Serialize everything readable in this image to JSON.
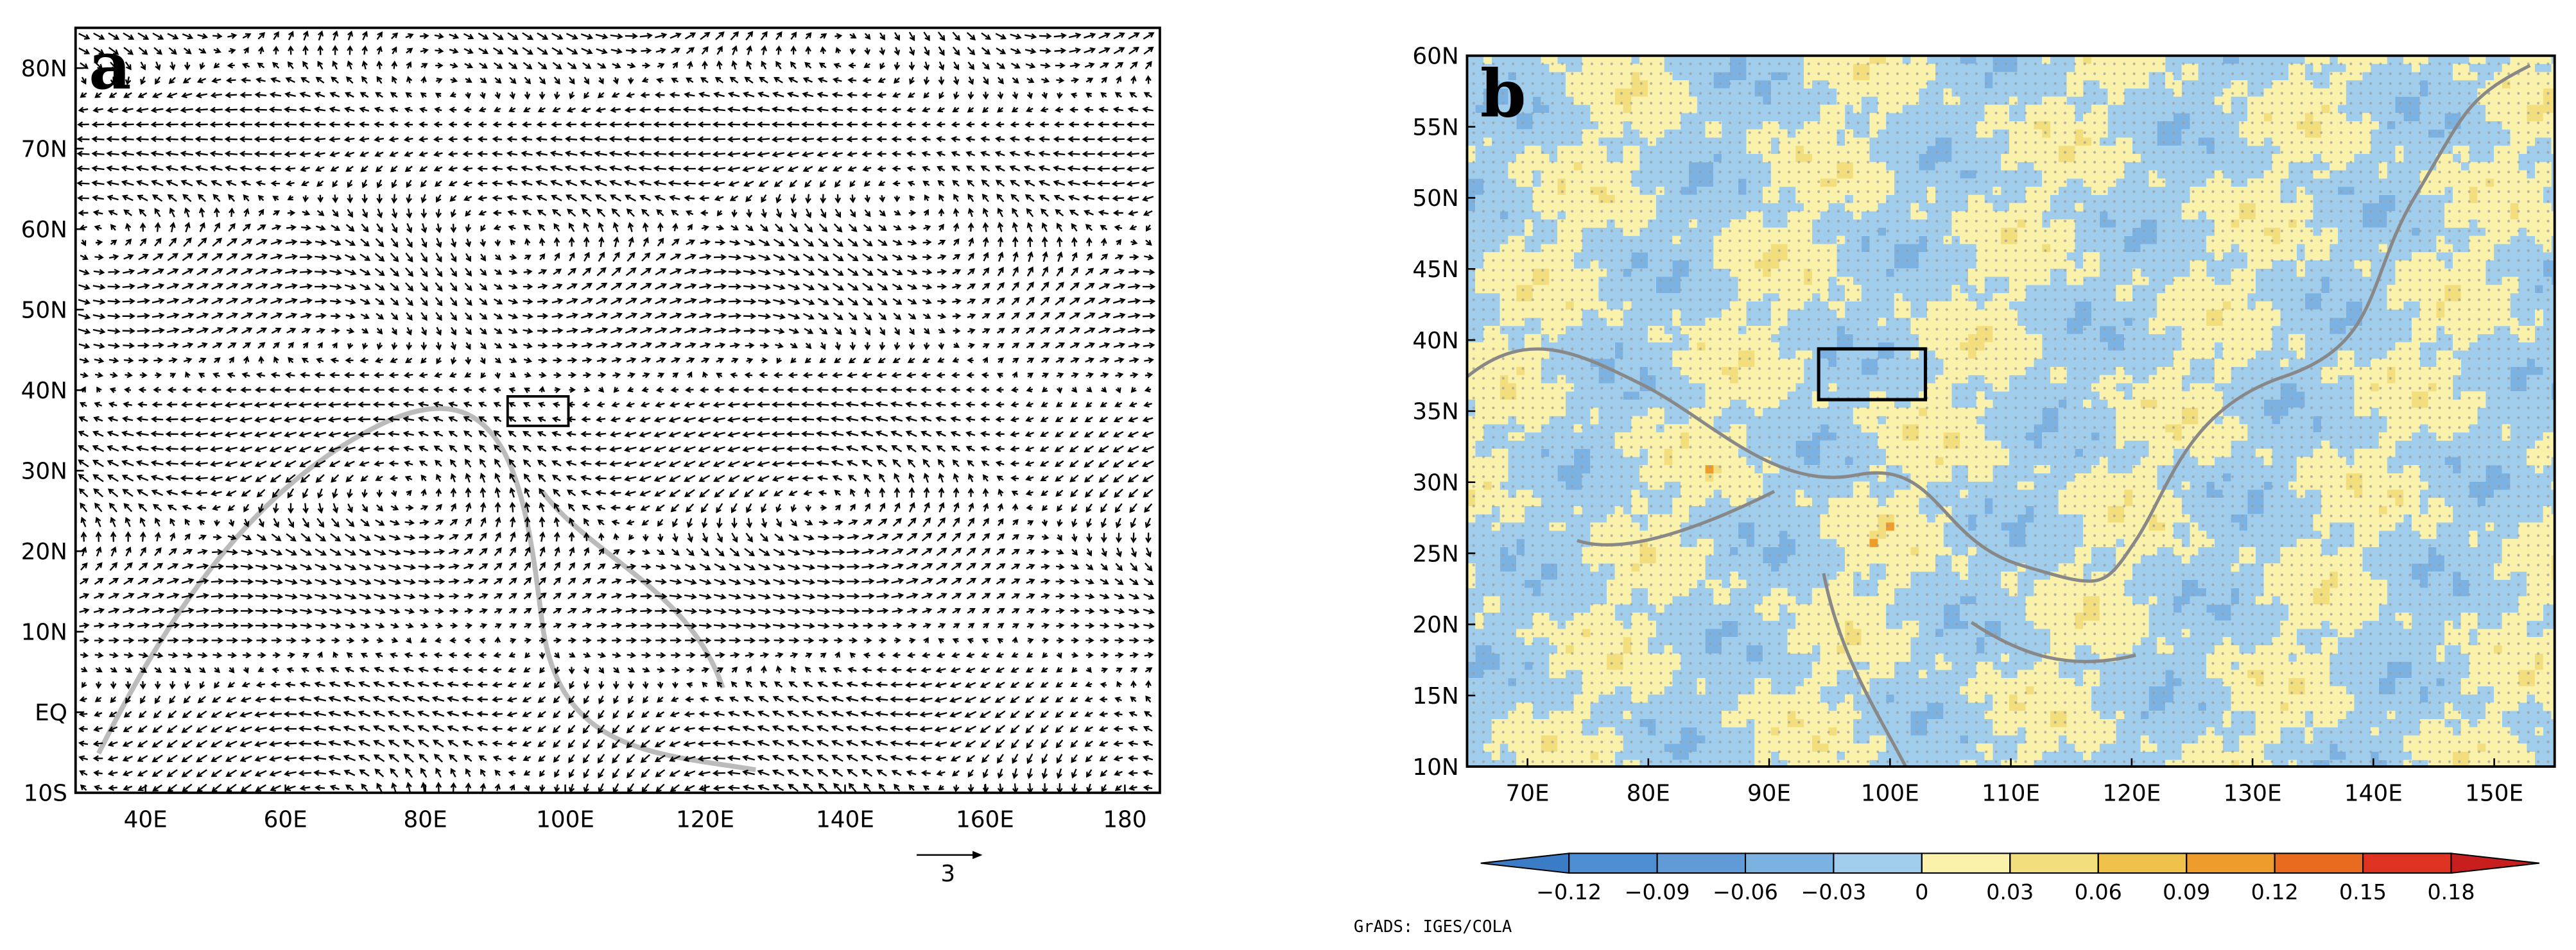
{
  "panels": [
    {
      "label": "a",
      "xlim": [
        30,
        185
      ],
      "ylim": [
        -10,
        85
      ],
      "xticks": [
        {
          "value": 40,
          "label": "40E"
        },
        {
          "value": 60,
          "label": "60E"
        },
        {
          "value": 80,
          "label": "80E"
        },
        {
          "value": 100,
          "label": "100E"
        },
        {
          "value": 120,
          "label": "120E"
        },
        {
          "value": 140,
          "label": "140E"
        },
        {
          "value": 160,
          "label": "160E"
        },
        180
      ],
      "yticks": [
        {
          "value": -10,
          "label": "10S"
        },
        {
          "value": 0,
          "label": "EQ"
        },
        {
          "value": 10,
          "label": "10N"
        },
        {
          "value": 20,
          "label": "20N"
        },
        {
          "value": 30,
          "label": "30N"
        },
        {
          "value": 40,
          "label": "40N"
        },
        {
          "value": 50,
          "label": "50N"
        },
        {
          "value": 60,
          "label": "60N"
        },
        {
          "value": 70,
          "label": "70N"
        },
        {
          "value": 80,
          "label": "80N"
        }
      ],
      "vector_scale": 3
    },
    {
      "label": "b",
      "xlim": [
        65,
        155
      ],
      "ylim": [
        10,
        60
      ],
      "xticks": [
        {
          "value": 70,
          "label": "70E"
        },
        {
          "value": 80,
          "label": "80E"
        },
        {
          "value": 90,
          "label": "90E"
        },
        {
          "value": 100,
          "label": "100E"
        },
        {
          "value": 110,
          "label": "110E"
        },
        {
          "value": 120,
          "label": "120E"
        },
        {
          "value": 130,
          "label": "130E"
        },
        {
          "value": 140,
          "label": "140E"
        },
        {
          "value": 150,
          "label": "150E"
        }
      ],
      "yticks": [
        {
          "value": 10,
          "label": "10N"
        },
        {
          "value": 15,
          "label": "15N"
        },
        {
          "value": 20,
          "label": "20N"
        },
        {
          "value": 25,
          "label": "25N"
        },
        {
          "value": 30,
          "label": "30N"
        },
        {
          "value": 35,
          "label": "35N"
        },
        {
          "value": 40,
          "label": "40N"
        },
        {
          "value": 45,
          "label": "45N"
        },
        {
          "value": 50,
          "label": "50N"
        },
        {
          "value": 55,
          "label": "55N"
        },
        {
          "value": 60,
          "label": "60N"
        }
      ],
      "colorbar": {
        "ticks": [
          {
            "value": -0.12,
            "label": "−0.12"
          },
          {
            "value": -0.09,
            "label": "−0.09"
          },
          {
            "value": -0.06,
            "label": "−0.06"
          },
          {
            "value": -0.03,
            "label": "−0.03"
          },
          0,
          0.03,
          0.06,
          0.09,
          0.12,
          0.15,
          0.18
        ],
        "colors": [
          "#3a7cc6",
          "#4d8ed2",
          "#609bd8",
          "#7cb2e2",
          "#a0cdec",
          "#faf1aa",
          "#f2de7c",
          "#efc24c",
          "#ee9d2c",
          "#e96b1f",
          "#de3320",
          "#c81e1e"
        ]
      }
    }
  ],
  "credit": "GrADS: IGES/COLA"
}
